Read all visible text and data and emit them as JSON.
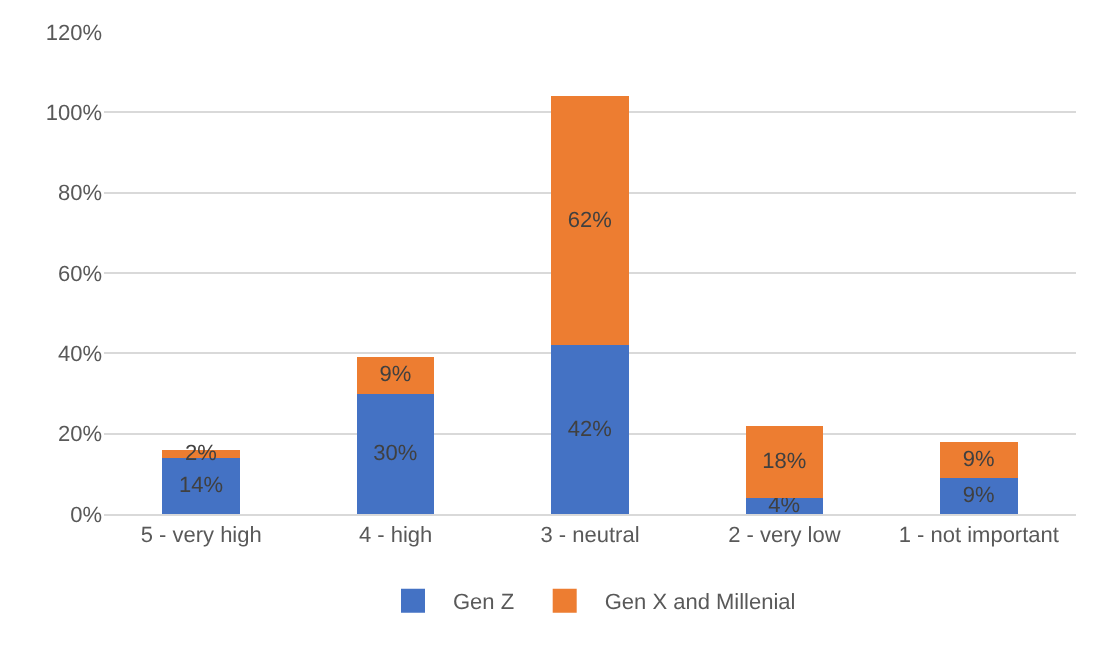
{
  "chart_data": {
    "type": "bar",
    "stacked": true,
    "categories": [
      "5 - very high",
      "4 - high",
      "3 - neutral",
      "2 - very low",
      "1 - not important"
    ],
    "series": [
      {
        "name": "Gen Z",
        "color": "#4472c4",
        "values": [
          14,
          30,
          42,
          4,
          9
        ],
        "value_labels": [
          "14%",
          "30%",
          "42%",
          "4%",
          "9%"
        ]
      },
      {
        "name": "Gen X and Millenial",
        "color": "#ed7d31",
        "values": [
          2,
          9,
          62,
          18,
          9
        ],
        "value_labels": [
          "2%",
          "9%",
          "62%",
          "18%",
          "9%"
        ]
      }
    ],
    "ylim": [
      0,
      120
    ],
    "yticks": [
      {
        "value": 0,
        "label": "0%"
      },
      {
        "value": 20,
        "label": "20%"
      },
      {
        "value": 40,
        "label": "40%"
      },
      {
        "value": 60,
        "label": "60%"
      },
      {
        "value": 80,
        "label": "80%"
      },
      {
        "value": 100,
        "label": "100%"
      },
      {
        "value": 120,
        "label": "120%"
      }
    ],
    "grid": "y",
    "legend": "bottom"
  }
}
